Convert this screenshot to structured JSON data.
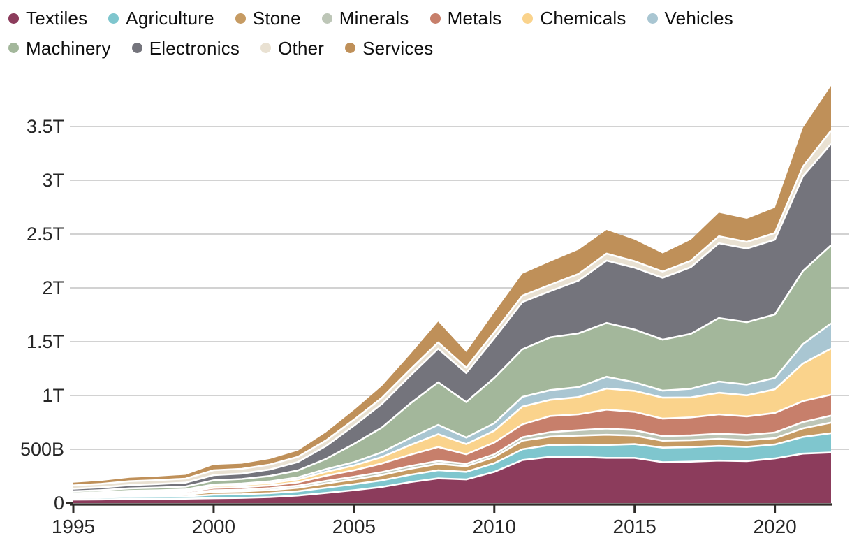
{
  "chart_data": {
    "type": "area",
    "stacked": true,
    "title": "",
    "y_unit": "USD (B = billions, T = trillions)",
    "x_label": "",
    "y_label": "",
    "grid": "horizontal",
    "legend_position": "top-left",
    "legend_rows": [
      7,
      4
    ],
    "x_range": [
      1995,
      2022
    ],
    "ylim_billions": [
      0,
      3900
    ],
    "x": [
      1995,
      1996,
      1997,
      1998,
      1999,
      2000,
      2001,
      2002,
      2003,
      2004,
      2005,
      2006,
      2007,
      2008,
      2009,
      2010,
      2011,
      2012,
      2013,
      2014,
      2015,
      2016,
      2017,
      2018,
      2019,
      2020,
      2021,
      2022
    ],
    "x_ticks": [
      {
        "value": 1995,
        "label": "1995"
      },
      {
        "value": 2000,
        "label": "2000"
      },
      {
        "value": 2005,
        "label": "2005"
      },
      {
        "value": 2010,
        "label": "2010"
      },
      {
        "value": 2015,
        "label": "2015"
      },
      {
        "value": 2020,
        "label": "2020"
      }
    ],
    "y_ticks": [
      {
        "value": 0,
        "label": "0"
      },
      {
        "value": 500,
        "label": "500B"
      },
      {
        "value": 1000,
        "label": "1T"
      },
      {
        "value": 1500,
        "label": "1.5T"
      },
      {
        "value": 2000,
        "label": "2T"
      },
      {
        "value": 2500,
        "label": "2.5T"
      },
      {
        "value": 3000,
        "label": "3T"
      },
      {
        "value": 3500,
        "label": "3.5T"
      }
    ],
    "series": [
      {
        "name": "Textiles",
        "color": "#8C3C5C",
        "values_billions": [
          32,
          34,
          38,
          39,
          41,
          45,
          48,
          56,
          70,
          95,
          120,
          150,
          195,
          230,
          220,
          290,
          400,
          430,
          430,
          420,
          420,
          380,
          385,
          395,
          390,
          415,
          460,
          470
        ]
      },
      {
        "name": "Agriculture",
        "color": "#7FC6CE",
        "values_billions": [
          15,
          17,
          19,
          20,
          21,
          33,
          34,
          36,
          40,
          48,
          55,
          62,
          68,
          75,
          70,
          80,
          100,
          110,
          112,
          120,
          128,
          135,
          135,
          136,
          132,
          130,
          155,
          180
        ]
      },
      {
        "name": "Stone",
        "color": "#C69B63",
        "values_billions": [
          10,
          11,
          13,
          14,
          15,
          26,
          27,
          29,
          32,
          40,
          45,
          50,
          55,
          60,
          52,
          58,
          80,
          78,
          85,
          95,
          80,
          65,
          65,
          66,
          62,
          58,
          80,
          98
        ]
      },
      {
        "name": "Minerals",
        "color": "#BDC6B7",
        "values_billions": [
          8,
          9,
          10,
          10,
          11,
          15,
          16,
          17,
          19,
          23,
          25,
          26,
          26,
          26,
          22,
          25,
          32,
          42,
          50,
          58,
          50,
          43,
          44,
          48,
          50,
          53,
          58,
          65
        ]
      },
      {
        "name": "Metals",
        "color": "#C77F6B",
        "values_billions": [
          12,
          13,
          15,
          15,
          16,
          22,
          23,
          26,
          32,
          48,
          60,
          80,
          105,
          130,
          90,
          110,
          120,
          150,
          148,
          176,
          170,
          162,
          168,
          180,
          172,
          182,
          195,
          194
        ]
      },
      {
        "name": "Chemicals",
        "color": "#FAD38C",
        "values_billions": [
          11,
          12,
          13,
          14,
          15,
          19,
          20,
          22,
          27,
          36,
          45,
          60,
          90,
          119,
          95,
          110,
          165,
          150,
          160,
          195,
          195,
          195,
          185,
          200,
          195,
          220,
          350,
          429
        ]
      },
      {
        "name": "Vehicles",
        "color": "#A9C6D2",
        "values_billions": [
          4,
          5,
          6,
          7,
          8,
          13,
          14,
          16,
          18,
          25,
          30,
          45,
          65,
          87,
          60,
          70,
          90,
          90,
          92,
          110,
          80,
          65,
          80,
          105,
          100,
          105,
          180,
          234
        ]
      },
      {
        "name": "Machinery",
        "color": "#A3B79B",
        "values_billions": [
          18,
          20,
          23,
          25,
          27,
          39,
          42,
          50,
          65,
          95,
          170,
          230,
          320,
          396,
          330,
          420,
          442,
          490,
          500,
          500,
          490,
          474,
          510,
          590,
          580,
          590,
          680,
          727
        ]
      },
      {
        "name": "Electronics",
        "color": "#74747C",
        "values_billions": [
          24,
          26,
          30,
          33,
          36,
          48,
          50,
          60,
          78,
          120,
          170,
          220,
          260,
          312,
          270,
          370,
          440,
          430,
          490,
          580,
          575,
          575,
          620,
          695,
          685,
          695,
          880,
          942
        ]
      },
      {
        "name": "Other",
        "color": "#E9E1D2",
        "values_billions": [
          30,
          32,
          36,
          36,
          37,
          45,
          44,
          46,
          48,
          52,
          55,
          56,
          57,
          58,
          50,
          55,
          58,
          60,
          62,
          65,
          60,
          58,
          60,
          64,
          62,
          62,
          90,
          123
        ]
      },
      {
        "name": "Services",
        "color": "#BF9059",
        "values_billions": [
          26,
          28,
          33,
          34,
          36,
          50,
          48,
          52,
          58,
          75,
          90,
          110,
          140,
          194,
          145,
          185,
          205,
          215,
          225,
          220,
          200,
          169,
          195,
          220,
          215,
          235,
          360,
          415
        ]
      }
    ],
    "axis_color": "#2e2b28",
    "gridline_color": "#d2d2d2",
    "boundary_stroke_color": "#ffffff"
  }
}
